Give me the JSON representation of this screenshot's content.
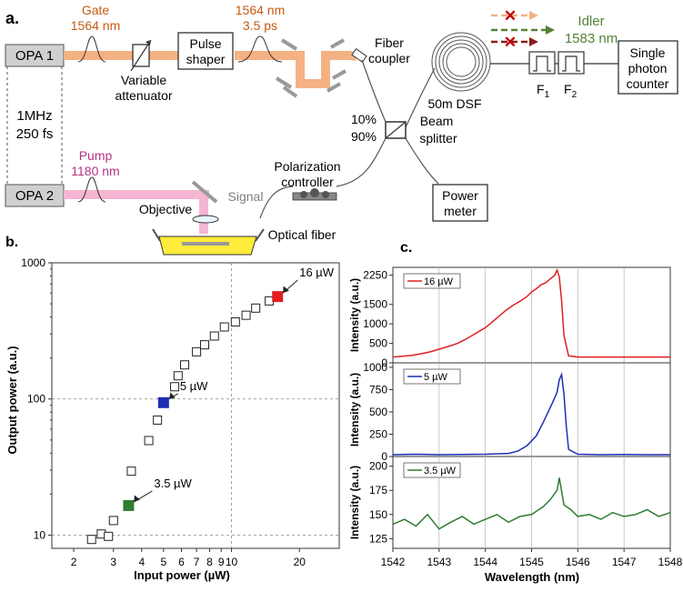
{
  "panel_a": {
    "label": "a.",
    "opa1": "OPA 1",
    "opa2": "OPA 2",
    "rep_rate": "1MHz",
    "pulse_width": "250 fs",
    "gate_name": "Gate",
    "gate_wavelength": "1564 nm",
    "variable_attenuator_line1": "Variable",
    "variable_attenuator_line2": "attenuator",
    "pulse_shaper_line1": "Pulse",
    "pulse_shaper_line2": "shaper",
    "shaped_wavelength": "1564 nm",
    "shaped_duration": "3.5 ps",
    "fiber_coupler_line1": "Fiber",
    "fiber_coupler_line2": "coupler",
    "dsf": "50m DSF",
    "idler_name": "Idler",
    "idler_wavelength": "1583 nm",
    "filter1": "F",
    "filter1_sub": "1",
    "filter2": "F",
    "filter2_sub": "2",
    "spc_line1": "Single",
    "spc_line2": "photon",
    "spc_line3": "counter",
    "ratio_10": "10%",
    "ratio_90": "90%",
    "beam_splitter_line1": "Beam",
    "beam_splitter_line2": "splitter",
    "power_meter_line1": "Power",
    "power_meter_line2": "meter",
    "pump_name": "Pump",
    "pump_wavelength": "1180 nm",
    "polarization_line1": "Polarization",
    "polarization_line2": "controller",
    "signal": "Signal",
    "objective": "Objective",
    "optical_fiber": "Optical fiber",
    "colors": {
      "gate": "#F4B183",
      "gate_text": "#C55A11",
      "pump": "#F4B6D2",
      "pump_text": "#B2348A",
      "idler": "#548235",
      "blocked": "#8B1A1A",
      "chip": "#FFEB3B"
    }
  },
  "chart_data": [
    {
      "type": "scatter",
      "panel": "b.",
      "xscale": "log",
      "yscale": "log",
      "xlabel": "Input power (µW)",
      "ylabel": "Output power (a.u.)",
      "xlim": [
        1.6,
        30
      ],
      "ylim": [
        8,
        1000
      ],
      "xticks": [
        2,
        3,
        4,
        5,
        6,
        7,
        8,
        9,
        10,
        20
      ],
      "yticks": [
        10,
        100,
        1000
      ],
      "points": [
        {
          "x": 2.4,
          "y": 9.3
        },
        {
          "x": 2.65,
          "y": 10.2
        },
        {
          "x": 2.85,
          "y": 9.8
        },
        {
          "x": 3.0,
          "y": 12.8
        },
        {
          "x": 3.6,
          "y": 29.5
        },
        {
          "x": 4.3,
          "y": 49.5
        },
        {
          "x": 4.7,
          "y": 70
        },
        {
          "x": 5.6,
          "y": 123
        },
        {
          "x": 5.8,
          "y": 148
        },
        {
          "x": 6.2,
          "y": 178
        },
        {
          "x": 7.0,
          "y": 222
        },
        {
          "x": 7.6,
          "y": 250
        },
        {
          "x": 8.4,
          "y": 290
        },
        {
          "x": 9.3,
          "y": 338
        },
        {
          "x": 10.4,
          "y": 368
        },
        {
          "x": 11.6,
          "y": 412
        },
        {
          "x": 12.8,
          "y": 465
        },
        {
          "x": 14.7,
          "y": 525
        }
      ],
      "highlighted": [
        {
          "x": 3.5,
          "y": 16.5,
          "label": "3.5 µW",
          "color": "#2E7D32"
        },
        {
          "x": 5.0,
          "y": 94,
          "label": "5 µW",
          "color": "#1E2DB4"
        },
        {
          "x": 16.0,
          "y": 565,
          "label": "16 µW",
          "color": "#E02020"
        }
      ]
    },
    {
      "type": "line",
      "panel": "c.",
      "xlabel": "Wavelength (nm)",
      "xlim": [
        1542,
        1548
      ],
      "xticks": [
        1542,
        1543,
        1544,
        1545,
        1546,
        1547,
        1548
      ],
      "subplots": [
        {
          "name": "16 µW",
          "color": "#E02020",
          "ylabel": "Intensity (a.u.)",
          "ylim": [
            0,
            2450
          ],
          "yticks": [
            0,
            500,
            1000,
            1500,
            2250
          ],
          "x": [
            1542.0,
            1542.2,
            1542.4,
            1542.6,
            1542.8,
            1543.0,
            1543.2,
            1543.4,
            1543.6,
            1543.8,
            1544.0,
            1544.15,
            1544.3,
            1544.45,
            1544.6,
            1544.75,
            1544.9,
            1545.0,
            1545.1,
            1545.2,
            1545.3,
            1545.4,
            1545.5,
            1545.55,
            1545.6,
            1545.65,
            1545.7,
            1545.8,
            1546.0,
            1546.5,
            1547.0,
            1547.5,
            1548.0
          ],
          "values": [
            150,
            170,
            190,
            230,
            280,
            350,
            420,
            500,
            620,
            760,
            900,
            1050,
            1200,
            1350,
            1480,
            1580,
            1700,
            1820,
            1900,
            2000,
            2050,
            2150,
            2250,
            2380,
            2200,
            1600,
            700,
            180,
            150,
            150,
            150,
            150,
            150
          ]
        },
        {
          "name": "5 µW",
          "color": "#1E2DB4",
          "ylabel": "Intensity (a.u.)",
          "ylim": [
            0,
            1050
          ],
          "yticks": [
            0,
            250,
            500,
            750,
            1000
          ],
          "x": [
            1542.0,
            1542.5,
            1543.0,
            1543.5,
            1544.0,
            1544.5,
            1544.7,
            1544.9,
            1545.1,
            1545.25,
            1545.35,
            1545.45,
            1545.55,
            1545.6,
            1545.65,
            1545.7,
            1545.75,
            1545.8,
            1546.0,
            1546.5,
            1547.0,
            1547.5,
            1548.0
          ],
          "values": [
            20,
            25,
            20,
            22,
            25,
            35,
            60,
            120,
            230,
            380,
            490,
            600,
            720,
            860,
            920,
            700,
            350,
            80,
            25,
            20,
            22,
            20,
            20
          ]
        },
        {
          "name": "3.5 µW",
          "color": "#2E7D32",
          "ylabel": "Intensity (a.u.)",
          "ylim": [
            115,
            210
          ],
          "yticks": [
            125,
            150,
            175,
            200
          ],
          "x": [
            1542.0,
            1542.25,
            1542.5,
            1542.75,
            1543.0,
            1543.25,
            1543.5,
            1543.75,
            1544.0,
            1544.25,
            1544.5,
            1544.75,
            1545.0,
            1545.25,
            1545.4,
            1545.55,
            1545.6,
            1545.7,
            1545.85,
            1546.0,
            1546.25,
            1546.5,
            1546.75,
            1547.0,
            1547.25,
            1547.5,
            1547.75,
            1548.0
          ],
          "values": [
            140,
            145,
            138,
            150,
            135,
            142,
            148,
            140,
            145,
            150,
            142,
            148,
            150,
            158,
            165,
            175,
            188,
            160,
            155,
            148,
            150,
            145,
            152,
            148,
            150,
            155,
            148,
            152
          ]
        }
      ]
    }
  ]
}
